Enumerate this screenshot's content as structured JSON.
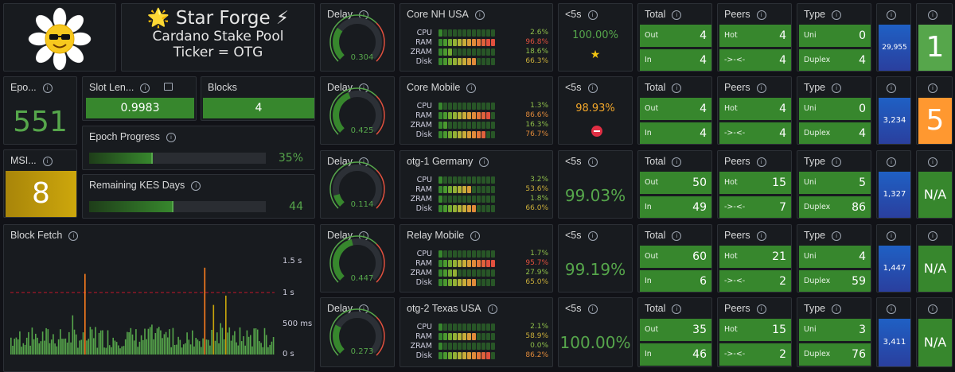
{
  "header": {
    "title_line1": "🌟 Star Forge ⚡",
    "title_line2": "Cardano Stake Pool",
    "title_line3": "Ticker = OTG"
  },
  "epoch": {
    "label": "Epo...",
    "value": "551"
  },
  "slot_length": {
    "label": "Slot Len...",
    "value": "0.9983"
  },
  "blocks": {
    "label": "Blocks",
    "value": "4"
  },
  "epoch_progress": {
    "label": "Epoch Progress",
    "value": "35%",
    "fraction": 0.35
  },
  "msi": {
    "label": "MSI...",
    "value": "8"
  },
  "kes": {
    "label": "Remaining KES Days",
    "value": "44",
    "fraction": 0.47
  },
  "block_fetch": {
    "label": "Block Fetch",
    "y_ticks": [
      "1.5 s",
      "1 s",
      "500 ms",
      "0 s"
    ]
  },
  "nodes": [
    {
      "delay_label": "Delay",
      "delay_value": "0.304",
      "delay_frac": 0.3,
      "name": "Core NH USA",
      "cpu": "2.6%",
      "ram": "96.8%",
      "zram": "18.6%",
      "disk": "66.3%",
      "lt5_label": "<5s",
      "lt5_value": "100.00%",
      "lt5_icon": "star-icon",
      "total_label": "Total",
      "out_label": "Out",
      "out": "4",
      "in_label": "In",
      "in": "4",
      "peers_label": "Peers",
      "hot_label": "Hot",
      "hot": "4",
      "dir_label": "->-<-",
      "dir": "4",
      "type_label": "Type",
      "uni_label": "Uni",
      "uni": "0",
      "duplex_label": "Duplex",
      "duplex": "4",
      "count": "29,955",
      "status": "1"
    },
    {
      "delay_label": "Delay",
      "delay_value": "0.425",
      "delay_frac": 0.42,
      "name": "Core Mobile",
      "cpu": "1.3%",
      "ram": "86.6%",
      "zram": "16.3%",
      "disk": "76.7%",
      "lt5_label": "<5s",
      "lt5_value": "98.93%",
      "lt5_icon": "no-entry-icon",
      "total_label": "Total",
      "out_label": "Out",
      "out": "4",
      "in_label": "In",
      "in": "4",
      "peers_label": "Peers",
      "hot_label": "Hot",
      "hot": "4",
      "dir_label": "->-<-",
      "dir": "4",
      "type_label": "Type",
      "uni_label": "Uni",
      "uni": "0",
      "duplex_label": "Duplex",
      "duplex": "4",
      "count": "3,234",
      "status": "5"
    },
    {
      "delay_label": "Delay",
      "delay_value": "0.114",
      "delay_frac": 0.11,
      "name": "otg-1 Germany",
      "cpu": "3.2%",
      "ram": "53.6%",
      "zram": "1.8%",
      "disk": "66.0%",
      "lt5_label": "<5s",
      "lt5_value": "99.03%",
      "lt5_icon": "",
      "total_label": "Total",
      "out_label": "Out",
      "out": "50",
      "in_label": "In",
      "in": "49",
      "peers_label": "Peers",
      "hot_label": "Hot",
      "hot": "15",
      "dir_label": "->-<-",
      "dir": "7",
      "type_label": "Type",
      "uni_label": "Uni",
      "uni": "5",
      "duplex_label": "Duplex",
      "duplex": "86",
      "count": "1,327",
      "status": "N/A"
    },
    {
      "delay_label": "Delay",
      "delay_value": "0.447",
      "delay_frac": 0.45,
      "name": "Relay Mobile",
      "cpu": "1.7%",
      "ram": "95.7%",
      "zram": "27.9%",
      "disk": "65.0%",
      "lt5_label": "<5s",
      "lt5_value": "99.19%",
      "lt5_icon": "",
      "total_label": "Total",
      "out_label": "Out",
      "out": "60",
      "in_label": "In",
      "in": "6",
      "peers_label": "Peers",
      "hot_label": "Hot",
      "hot": "21",
      "dir_label": "->-<-",
      "dir": "2",
      "type_label": "Type",
      "uni_label": "Uni",
      "uni": "4",
      "duplex_label": "Duplex",
      "duplex": "59",
      "count": "1,447",
      "status": "N/A"
    },
    {
      "delay_label": "Delay",
      "delay_value": "0.273",
      "delay_frac": 0.27,
      "name": "otg-2 Texas USA",
      "cpu": "2.1%",
      "ram": "58.9%",
      "zram": "0.0%",
      "disk": "86.2%",
      "lt5_label": "<5s",
      "lt5_value": "100.00%",
      "lt5_icon": "",
      "total_label": "Total",
      "out_label": "Out",
      "out": "35",
      "in_label": "In",
      "in": "46",
      "peers_label": "Peers",
      "hot_label": "Hot",
      "hot": "15",
      "dir_label": "->-<-",
      "dir": "2",
      "type_label": "Type",
      "uni_label": "Uni",
      "uni": "3",
      "duplex_label": "Duplex",
      "duplex": "76",
      "count": "3,411",
      "status": "N/A"
    }
  ],
  "colors": {
    "green": "#37872d",
    "green_text": "#56a64b",
    "blue": "#1f60c4",
    "orange": "#ff9830",
    "yellow": "#c9a50b",
    "red": "#e0503e"
  }
}
